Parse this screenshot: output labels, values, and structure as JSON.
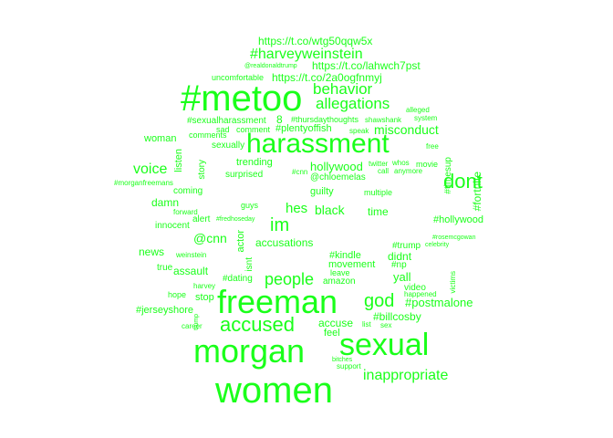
{
  "word_color": "#1aff1a",
  "background": "#ffffff",
  "words": [
    "https://t.co/wtg50qqw5x",
    "#harveyweinstein",
    "@realdonaldtrump",
    "https://t.co/lahwch7pst",
    "uncomfortable",
    "https://t.co/2a0ogfnmyj",
    "#metoo",
    "behavior",
    "allegations",
    "alleged",
    "system",
    "#sexualharassment",
    "8",
    "#thursdaythoughts",
    "shawshank",
    "sad",
    "comment",
    "#plentyoffish",
    "speak",
    "comments",
    "harassment",
    "woman",
    "misconduct",
    "voice",
    "hollywood",
    "dont",
    "im",
    "free",
    "sexually",
    "trending",
    "twitter",
    "whos",
    "movie",
    "anymore",
    "call",
    "@chloemelas",
    "#cnn",
    "story",
    "listen",
    "surprised",
    "hes",
    "black",
    "guilty",
    "multiple",
    "#fortnite",
    "#timesup",
    "coming",
    "people",
    "time",
    "#morganfreemans",
    "damn",
    "innocent",
    "alert",
    "#fredhoseday",
    "guys",
    "forward",
    "#hollywood",
    "@cnn",
    "accusations",
    "#kindle",
    "didnt",
    "#trump",
    "news",
    "true",
    "assault",
    "actor",
    "isnt",
    "movement",
    "yall",
    "#np",
    "#dating",
    "amazon",
    "leave",
    "video",
    "stop",
    "hope",
    "harvey",
    "weinstein",
    "god",
    "#postmalone",
    "#jerseyshore",
    "freeman",
    "accused",
    "accuse",
    "feel",
    "#billcosby",
    "morgan",
    "sexual",
    "inappropriate",
    "women",
    "support",
    "bitches",
    "career",
    "trump",
    "sex",
    "list",
    "happened",
    "victims",
    "#rosemcgowan",
    "celebrity"
  ]
}
